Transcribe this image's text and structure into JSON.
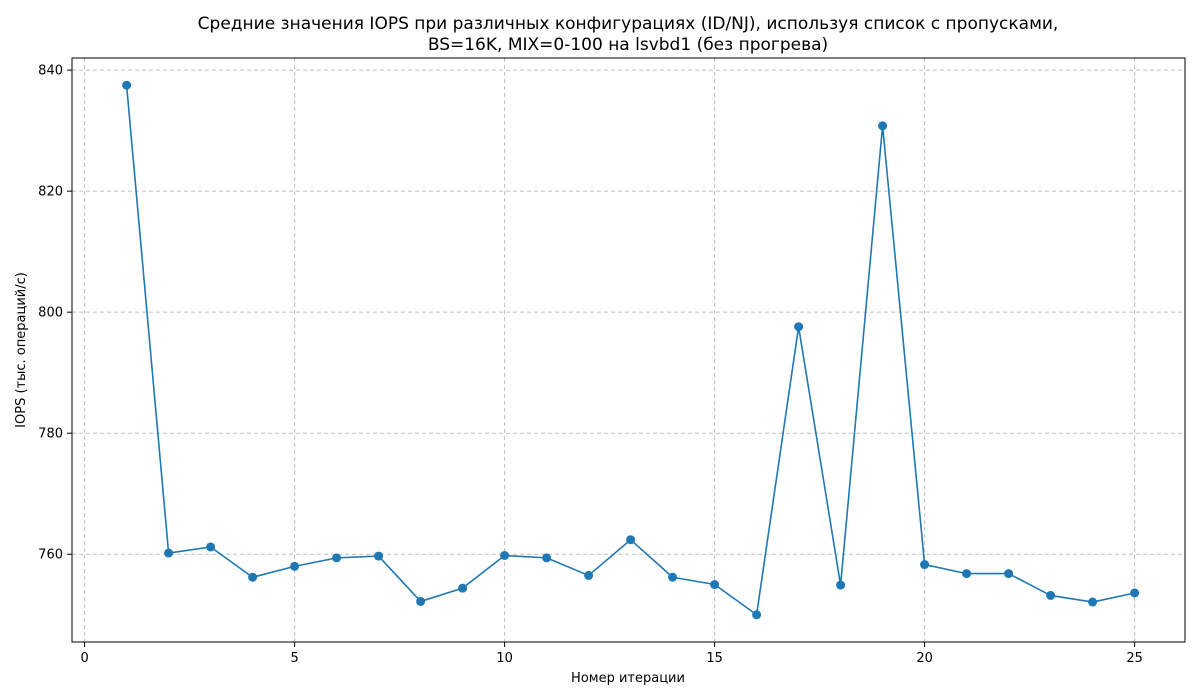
{
  "chart_data": {
    "type": "line",
    "title_lines": [
      "Средние значения IOPS при различных конфигурациях (ID/NJ), используя список с пропусками,",
      "BS=16K, MIX=0-100 на lsvbd1 (без прогрева)"
    ],
    "xlabel": "Номер итерации",
    "ylabel": "IOPS (тыс. операций/с)",
    "xlim": [
      -0.3,
      26.2
    ],
    "ylim": [
      745.5,
      842
    ],
    "x_ticks": [
      0,
      5,
      10,
      15,
      20,
      25
    ],
    "y_ticks": [
      760,
      780,
      800,
      820,
      840
    ],
    "grid": true,
    "color": "#1f77b4",
    "x": [
      1,
      2,
      3,
      4,
      5,
      6,
      7,
      8,
      9,
      10,
      11,
      12,
      13,
      14,
      15,
      16,
      17,
      18,
      19,
      20,
      21,
      22,
      23,
      24,
      25
    ],
    "values": [
      837.5,
      760.2,
      761.2,
      756.2,
      758.0,
      759.4,
      759.7,
      752.2,
      754.4,
      759.8,
      759.4,
      756.5,
      762.4,
      756.2,
      755.0,
      750.0,
      797.6,
      754.9,
      830.8,
      758.3,
      756.8,
      756.8,
      753.2,
      752.1,
      753.6
    ]
  }
}
